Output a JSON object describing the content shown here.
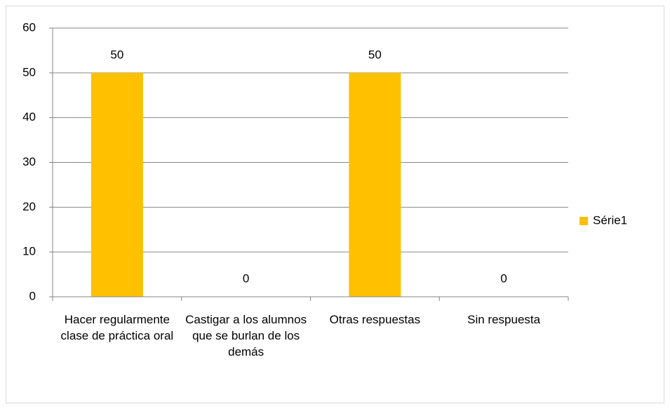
{
  "chart_data": {
    "type": "bar",
    "categories": [
      "Hacer regularmente clase de práctica oral",
      "Castigar a los alumnos que se burlan de los demás",
      "Otras respuestas",
      "Sin respuesta"
    ],
    "series": [
      {
        "name": "Série1",
        "color": "#ffc000",
        "values": [
          50,
          0,
          50,
          0
        ]
      }
    ],
    "ylim": [
      0,
      60
    ],
    "yticks": [
      0,
      10,
      20,
      30,
      40,
      50,
      60
    ],
    "grid": true,
    "legend": "right"
  }
}
